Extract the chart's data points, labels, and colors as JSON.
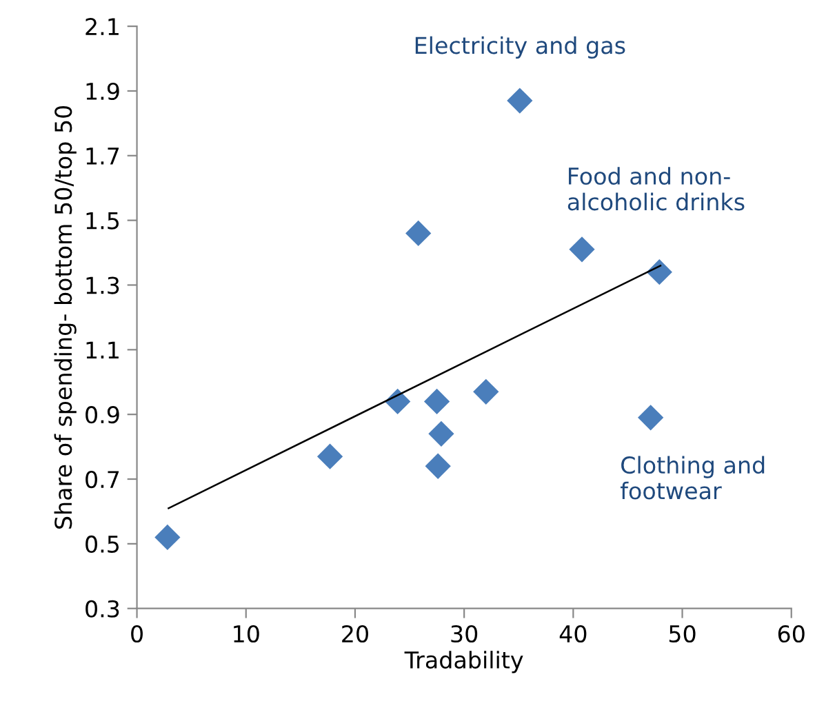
{
  "chart_data": {
    "type": "scatter",
    "xlabel": "Tradability",
    "ylabel": "Share of spending- bottom 50/top 50",
    "series": [
      {
        "color": "#4a7ebb",
        "x": [
          2.8,
          17.7,
          23.9,
          25.8,
          27.5,
          27.6,
          27.9,
          32.0,
          35.1,
          40.8,
          47.1,
          47.9
        ],
        "values": [
          0.52,
          0.77,
          0.94,
          1.46,
          0.94,
          0.74,
          0.84,
          0.97,
          1.87,
          1.41,
          0.89,
          1.34
        ]
      },
      {
        "type": "line",
        "marker": "none",
        "color": "#000000",
        "x": [
          2.9,
          48.0
        ],
        "values": [
          0.61,
          1.36
        ]
      }
    ],
    "annotations": [
      {
        "text": "Electricity and gas",
        "x": 35.1,
        "y": 1.87
      },
      {
        "text": "Food and non-\nalcoholic drinks",
        "x": 40.8,
        "y": 1.41
      },
      {
        "text": "Clothing and\nfootwear",
        "x": 47.1,
        "y": 0.89
      }
    ],
    "marker": "diamond",
    "grid": false,
    "xlim": [
      0,
      60
    ],
    "xticks": [
      0,
      10,
      20,
      30,
      40,
      50,
      60
    ],
    "ylim": [
      0.3,
      2.1
    ],
    "yticks": [
      0.3,
      0.5,
      0.7,
      0.9,
      1.1,
      1.3,
      1.5,
      1.7,
      1.9,
      2.1
    ]
  }
}
